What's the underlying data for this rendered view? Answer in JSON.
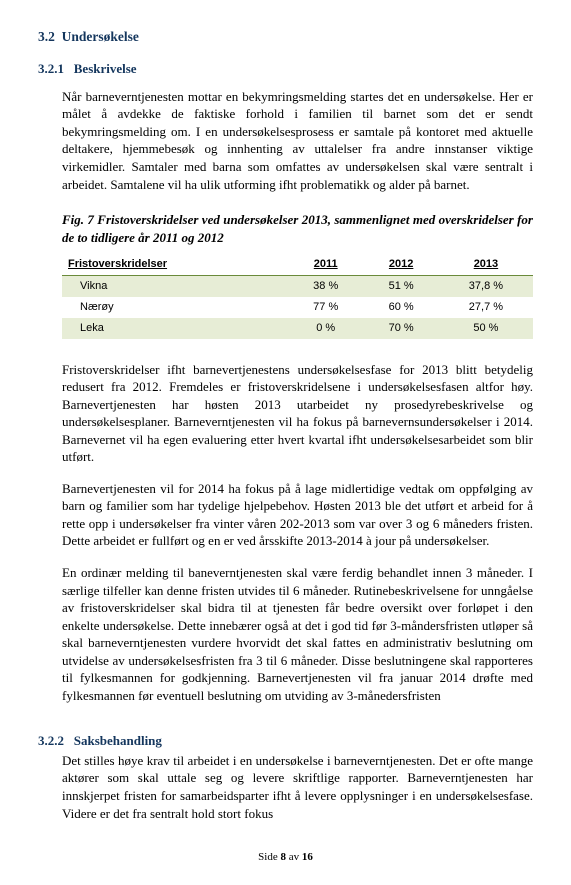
{
  "section": {
    "num": "3.2",
    "title": "Undersøkelse"
  },
  "sub1": {
    "num": "3.2.1",
    "title": "Beskrivelse",
    "p1": "Når barneverntjenesten mottar en bekymringsmelding startes det en undersøkelse. Her er målet å avdekke de faktiske forhold i familien til barnet som det er sendt bekymringsmelding om. I en undersøkelsesprosess er samtale på kontoret med aktuelle deltakere, hjemmebesøk og innhenting av uttalelser fra andre innstanser viktige virkemidler. Samtaler med barna som omfattes av undersøkelsen skal være sentralt i arbeidet. Samtalene vil ha ulik utforming ifht problematikk og alder på barnet.",
    "fig_caption": "Fig. 7 Fristoverskridelser ved undersøkelser 2013, sammenlignet med overskridelser for de to tidligere år 2011 og 2012",
    "p2": "Fristoverskridelser ifht barnevertjenestens undersøkelsesfase for 2013 blitt betydelig redusert fra 2012. Fremdeles er fristoverskridelsene i undersøkelsesfasen altfor høy. Barnevertjenesten har høsten 2013 utarbeidet ny prosedyrebeskrivelse og undersøkelsesplaner. Barneverntjenesten vil ha fokus på barnevernsundersøkelser i 2014. Barnevernet vil ha egen evaluering etter hvert kvartal ifht undersøkelsesarbeidet som blir utført.",
    "p3": "Barnevertjenesten vil for 2014 ha fokus på å lage midlertidige vedtak om oppfølging av barn og familier som har tydelige hjelpebehov. Høsten 2013 ble det utført et arbeid for å rette opp i undersøkelser fra vinter våren 202-2013 som var over 3 og 6 måneders fristen. Dette arbeidet er fullført og en er ved årsskifte 2013-2014 à jour på undersøkelser.",
    "p4": "En ordinær melding til baneverntjenesten skal være ferdig behandlet innen 3 måneder. I særlige tilfeller kan denne fristen utvides til 6 måneder. Rutinebeskrivelsene for unngåelse av fristoverskridelser skal bidra til at tjenesten får bedre oversikt over forløpet i den enkelte undersøkelse. Dette innebærer også at det i god tid før 3-måndersfristen utløper så skal barneverntjenesten vurdere hvorvidt det skal fattes en administrativ beslutning om utvidelse av undersøkelsesfristen fra 3 til 6 måneder. Disse beslutningene skal rapporteres til fylkesmannen for godkjenning. Barnevertjenesten vil fra januar 2014 drøfte med fylkesmannen før eventuell beslutning om utviding av 3-månedersfristen"
  },
  "table": {
    "col0": "Fristoverskridelser",
    "col1": "2011",
    "col2": "2012",
    "col3": "2013",
    "rows": [
      {
        "label": "Vikna",
        "c1": "38 %",
        "c2": "51 %",
        "c3": "37,8 %",
        "band": true
      },
      {
        "label": "Nærøy",
        "c1": "77 %",
        "c2": "60 %",
        "c3": "27,7 %",
        "band": false
      },
      {
        "label": "Leka",
        "c1": "0 %",
        "c2": "70 %",
        "c3": "50 %",
        "band": true
      }
    ],
    "header_border_color": "#6a8a3a",
    "band_color": "#e7edd6"
  },
  "sub2": {
    "num": "3.2.2",
    "title": "Saksbehandling",
    "p1": "Det stilles høye krav til arbeidet i en undersøkelse i barneverntjenesten. Det er ofte mange aktører som skal uttale seg og levere skriftlige rapporter. Barneverntjenesten har innskjerpet fristen for samarbeidsparter ifht å levere opplysninger i en undersøkelsesfase. Videre er det fra sentralt hold stort fokus"
  },
  "footer": {
    "prefix": "Side ",
    "page": "8",
    "mid": " av ",
    "total": "16"
  }
}
